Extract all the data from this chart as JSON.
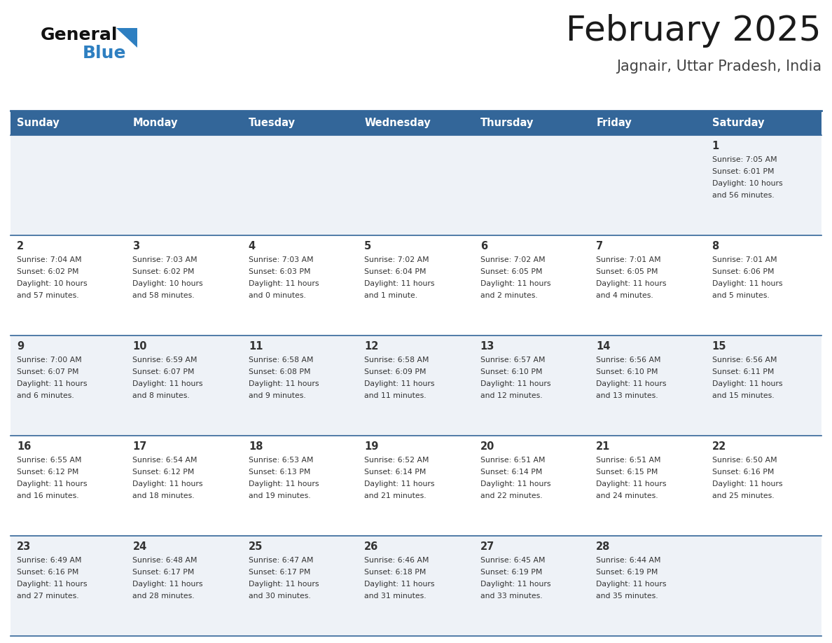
{
  "title": "February 2025",
  "subtitle": "Jagnair, Uttar Pradesh, India",
  "header_bg": "#336699",
  "header_text_color": "#ffffff",
  "row_bg_even": "#eef2f7",
  "row_bg_odd": "#ffffff",
  "separator_color": "#336699",
  "day_headers": [
    "Sunday",
    "Monday",
    "Tuesday",
    "Wednesday",
    "Thursday",
    "Friday",
    "Saturday"
  ],
  "days": [
    {
      "day": 1,
      "col": 6,
      "row": 0,
      "sunrise": "7:05 AM",
      "sunset": "6:01 PM",
      "daylight_h": "10 hours",
      "daylight_m": "56 minutes."
    },
    {
      "day": 2,
      "col": 0,
      "row": 1,
      "sunrise": "7:04 AM",
      "sunset": "6:02 PM",
      "daylight_h": "10 hours",
      "daylight_m": "57 minutes."
    },
    {
      "day": 3,
      "col": 1,
      "row": 1,
      "sunrise": "7:03 AM",
      "sunset": "6:02 PM",
      "daylight_h": "10 hours",
      "daylight_m": "58 minutes."
    },
    {
      "day": 4,
      "col": 2,
      "row": 1,
      "sunrise": "7:03 AM",
      "sunset": "6:03 PM",
      "daylight_h": "11 hours",
      "daylight_m": "0 minutes."
    },
    {
      "day": 5,
      "col": 3,
      "row": 1,
      "sunrise": "7:02 AM",
      "sunset": "6:04 PM",
      "daylight_h": "11 hours",
      "daylight_m": "1 minute."
    },
    {
      "day": 6,
      "col": 4,
      "row": 1,
      "sunrise": "7:02 AM",
      "sunset": "6:05 PM",
      "daylight_h": "11 hours",
      "daylight_m": "2 minutes."
    },
    {
      "day": 7,
      "col": 5,
      "row": 1,
      "sunrise": "7:01 AM",
      "sunset": "6:05 PM",
      "daylight_h": "11 hours",
      "daylight_m": "4 minutes."
    },
    {
      "day": 8,
      "col": 6,
      "row": 1,
      "sunrise": "7:01 AM",
      "sunset": "6:06 PM",
      "daylight_h": "11 hours",
      "daylight_m": "5 minutes."
    },
    {
      "day": 9,
      "col": 0,
      "row": 2,
      "sunrise": "7:00 AM",
      "sunset": "6:07 PM",
      "daylight_h": "11 hours",
      "daylight_m": "6 minutes."
    },
    {
      "day": 10,
      "col": 1,
      "row": 2,
      "sunrise": "6:59 AM",
      "sunset": "6:07 PM",
      "daylight_h": "11 hours",
      "daylight_m": "8 minutes."
    },
    {
      "day": 11,
      "col": 2,
      "row": 2,
      "sunrise": "6:58 AM",
      "sunset": "6:08 PM",
      "daylight_h": "11 hours",
      "daylight_m": "9 minutes."
    },
    {
      "day": 12,
      "col": 3,
      "row": 2,
      "sunrise": "6:58 AM",
      "sunset": "6:09 PM",
      "daylight_h": "11 hours",
      "daylight_m": "11 minutes."
    },
    {
      "day": 13,
      "col": 4,
      "row": 2,
      "sunrise": "6:57 AM",
      "sunset": "6:10 PM",
      "daylight_h": "11 hours",
      "daylight_m": "12 minutes."
    },
    {
      "day": 14,
      "col": 5,
      "row": 2,
      "sunrise": "6:56 AM",
      "sunset": "6:10 PM",
      "daylight_h": "11 hours",
      "daylight_m": "13 minutes."
    },
    {
      "day": 15,
      "col": 6,
      "row": 2,
      "sunrise": "6:56 AM",
      "sunset": "6:11 PM",
      "daylight_h": "11 hours",
      "daylight_m": "15 minutes."
    },
    {
      "day": 16,
      "col": 0,
      "row": 3,
      "sunrise": "6:55 AM",
      "sunset": "6:12 PM",
      "daylight_h": "11 hours",
      "daylight_m": "16 minutes."
    },
    {
      "day": 17,
      "col": 1,
      "row": 3,
      "sunrise": "6:54 AM",
      "sunset": "6:12 PM",
      "daylight_h": "11 hours",
      "daylight_m": "18 minutes."
    },
    {
      "day": 18,
      "col": 2,
      "row": 3,
      "sunrise": "6:53 AM",
      "sunset": "6:13 PM",
      "daylight_h": "11 hours",
      "daylight_m": "19 minutes."
    },
    {
      "day": 19,
      "col": 3,
      "row": 3,
      "sunrise": "6:52 AM",
      "sunset": "6:14 PM",
      "daylight_h": "11 hours",
      "daylight_m": "21 minutes."
    },
    {
      "day": 20,
      "col": 4,
      "row": 3,
      "sunrise": "6:51 AM",
      "sunset": "6:14 PM",
      "daylight_h": "11 hours",
      "daylight_m": "22 minutes."
    },
    {
      "day": 21,
      "col": 5,
      "row": 3,
      "sunrise": "6:51 AM",
      "sunset": "6:15 PM",
      "daylight_h": "11 hours",
      "daylight_m": "24 minutes."
    },
    {
      "day": 22,
      "col": 6,
      "row": 3,
      "sunrise": "6:50 AM",
      "sunset": "6:16 PM",
      "daylight_h": "11 hours",
      "daylight_m": "25 minutes."
    },
    {
      "day": 23,
      "col": 0,
      "row": 4,
      "sunrise": "6:49 AM",
      "sunset": "6:16 PM",
      "daylight_h": "11 hours",
      "daylight_m": "27 minutes."
    },
    {
      "day": 24,
      "col": 1,
      "row": 4,
      "sunrise": "6:48 AM",
      "sunset": "6:17 PM",
      "daylight_h": "11 hours",
      "daylight_m": "28 minutes."
    },
    {
      "day": 25,
      "col": 2,
      "row": 4,
      "sunrise": "6:47 AM",
      "sunset": "6:17 PM",
      "daylight_h": "11 hours",
      "daylight_m": "30 minutes."
    },
    {
      "day": 26,
      "col": 3,
      "row": 4,
      "sunrise": "6:46 AM",
      "sunset": "6:18 PM",
      "daylight_h": "11 hours",
      "daylight_m": "31 minutes."
    },
    {
      "day": 27,
      "col": 4,
      "row": 4,
      "sunrise": "6:45 AM",
      "sunset": "6:19 PM",
      "daylight_h": "11 hours",
      "daylight_m": "33 minutes."
    },
    {
      "day": 28,
      "col": 5,
      "row": 4,
      "sunrise": "6:44 AM",
      "sunset": "6:19 PM",
      "daylight_h": "11 hours",
      "daylight_m": "35 minutes."
    }
  ],
  "n_rows": 5,
  "n_cols": 7
}
